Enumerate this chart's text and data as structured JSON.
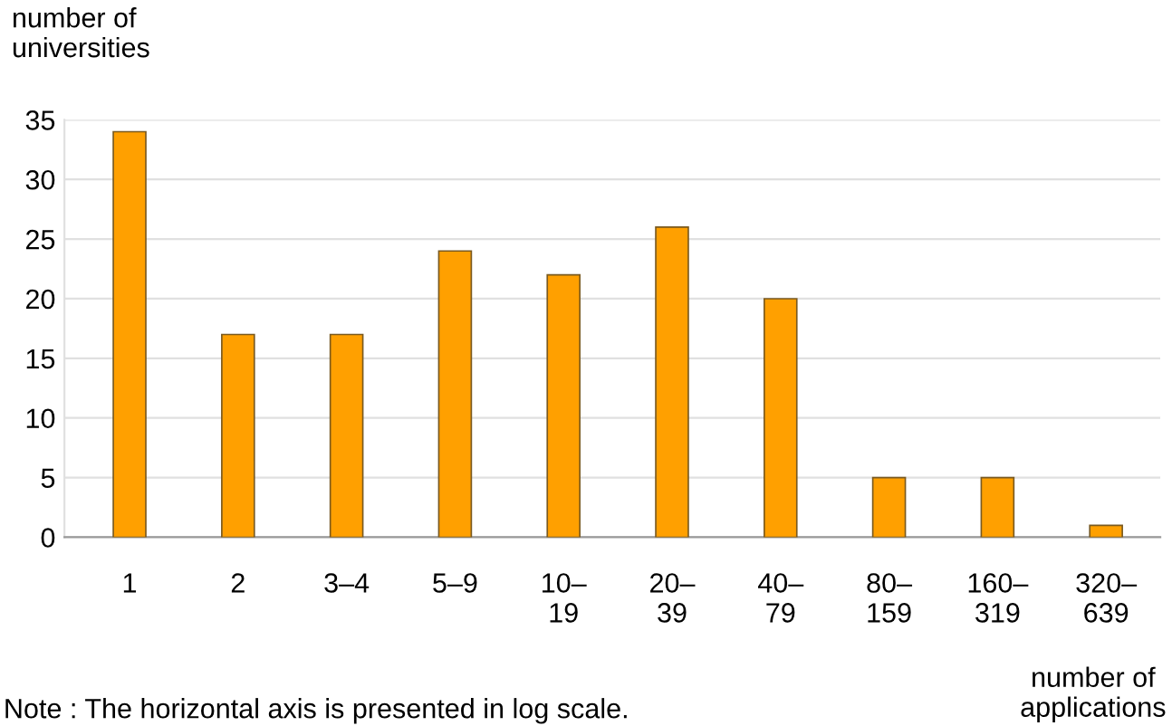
{
  "chart_data": {
    "type": "bar",
    "ylabel": "number of\nuniversities",
    "xlabel": "number of\napplications",
    "categories": [
      "1",
      "2",
      "3–4",
      "5–9",
      "10–\n19",
      "20–\n39",
      "40–\n79",
      "80–\n159",
      "160–\n319",
      "320–\n639"
    ],
    "values": [
      34,
      17,
      17,
      24,
      22,
      26,
      20,
      5,
      5,
      1
    ],
    "color": "#ffa000",
    "ylim": [
      0,
      35
    ],
    "yticks": [
      0,
      5,
      10,
      15,
      20,
      25,
      30,
      35
    ],
    "grid": "y",
    "annotations": [
      "Note : The horizontal axis is presented in log scale."
    ]
  }
}
